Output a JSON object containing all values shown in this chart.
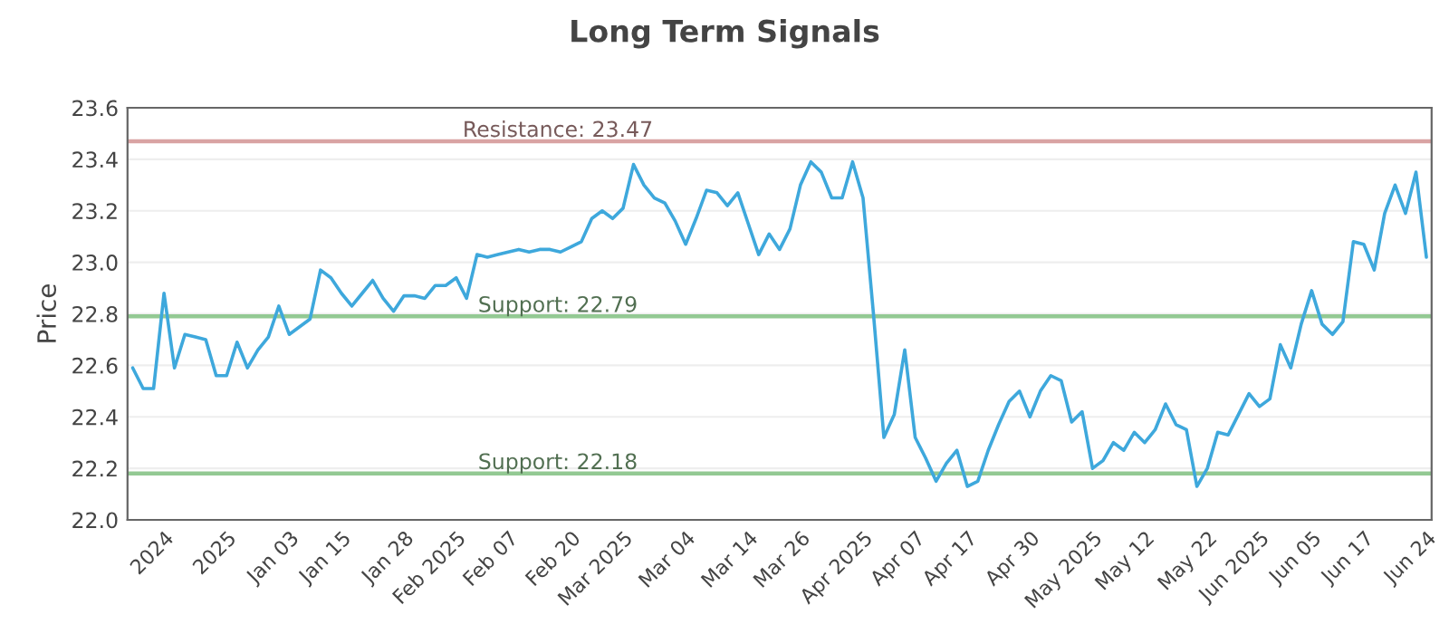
{
  "chart_data": {
    "type": "line",
    "title": "Long Term Signals",
    "ylabel": "Price",
    "categories": [
      null,
      null,
      null,
      "2024",
      null,
      null,
      null,
      null,
      null,
      "2025",
      null,
      null,
      null,
      null,
      null,
      "Jan 03",
      null,
      null,
      null,
      null,
      "Jan 15",
      null,
      null,
      null,
      null,
      null,
      "Jan 28",
      null,
      null,
      null,
      null,
      "Feb 2025",
      null,
      null,
      null,
      null,
      "Feb 07",
      null,
      null,
      null,
      null,
      null,
      "Feb 20",
      null,
      null,
      null,
      null,
      "Mar 2025",
      null,
      null,
      null,
      null,
      null,
      "Mar 04",
      null,
      null,
      null,
      null,
      null,
      "Mar 14",
      null,
      null,
      null,
      null,
      "Mar 26",
      null,
      null,
      null,
      null,
      null,
      "Apr 2025",
      null,
      null,
      null,
      null,
      "Apr 07",
      null,
      null,
      null,
      null,
      "Apr 17",
      null,
      null,
      null,
      null,
      null,
      "Apr 30",
      null,
      null,
      null,
      null,
      null,
      "May 2025",
      null,
      null,
      null,
      null,
      "May 12",
      null,
      null,
      null,
      null,
      null,
      "May 22",
      null,
      null,
      null,
      null,
      "Jun 2025",
      null,
      null,
      null,
      null,
      "Jun 05",
      null,
      null,
      null,
      null,
      "Jun 17",
      null,
      null,
      null,
      null,
      null,
      "Jun 24"
    ],
    "series": [
      {
        "color": "#3ea8dc",
        "values": [
          22.59,
          22.51,
          22.51,
          22.88,
          22.59,
          22.72,
          22.71,
          22.7,
          22.56,
          22.56,
          22.69,
          22.59,
          22.66,
          22.71,
          22.83,
          22.72,
          22.75,
          22.78,
          22.97,
          22.94,
          22.88,
          22.83,
          22.88,
          22.93,
          22.86,
          22.81,
          22.87,
          22.87,
          22.86,
          22.91,
          22.91,
          22.94,
          22.86,
          23.03,
          23.02,
          23.03,
          23.04,
          23.05,
          23.04,
          23.05,
          23.05,
          23.04,
          23.06,
          23.08,
          23.17,
          23.2,
          23.17,
          23.21,
          23.38,
          23.3,
          23.25,
          23.23,
          23.16,
          23.07,
          23.17,
          23.28,
          23.27,
          23.22,
          23.27,
          23.15,
          23.03,
          23.11,
          23.05,
          23.13,
          23.3,
          23.39,
          23.35,
          23.25,
          23.25,
          23.39,
          23.25,
          22.8,
          22.32,
          22.41,
          22.66,
          22.32,
          22.24,
          22.15,
          22.22,
          22.27,
          22.13,
          22.15,
          22.27,
          22.37,
          22.46,
          22.5,
          22.4,
          22.5,
          22.56,
          22.54,
          22.38,
          22.42,
          22.2,
          22.23,
          22.3,
          22.27,
          22.34,
          22.3,
          22.35,
          22.45,
          22.37,
          22.35,
          22.13,
          22.2,
          22.34,
          22.33,
          22.41,
          22.49,
          22.44,
          22.47,
          22.68,
          22.59,
          22.76,
          22.89,
          22.76,
          22.72,
          22.77,
          23.08,
          23.07,
          22.97,
          23.19,
          23.3,
          23.19,
          23.35,
          23.02
        ]
      }
    ],
    "ylim": [
      22.0,
      23.6
    ],
    "yticks": [
      "22.0",
      "22.2",
      "22.4",
      "22.6",
      "22.8",
      "23.0",
      "23.2",
      "23.4",
      "23.6"
    ],
    "ref_lines": [
      {
        "axis": "y",
        "value": 23.47,
        "label": "Resistance: 23.47",
        "color": "#d9a3a3"
      },
      {
        "axis": "y",
        "value": 22.79,
        "label": "Support: 22.79",
        "color": "#93c993"
      },
      {
        "axis": "y",
        "value": 22.18,
        "label": "Support: 22.18",
        "color": "#93c993"
      }
    ],
    "grid": "y",
    "marker": "none",
    "line_style": "solid"
  }
}
